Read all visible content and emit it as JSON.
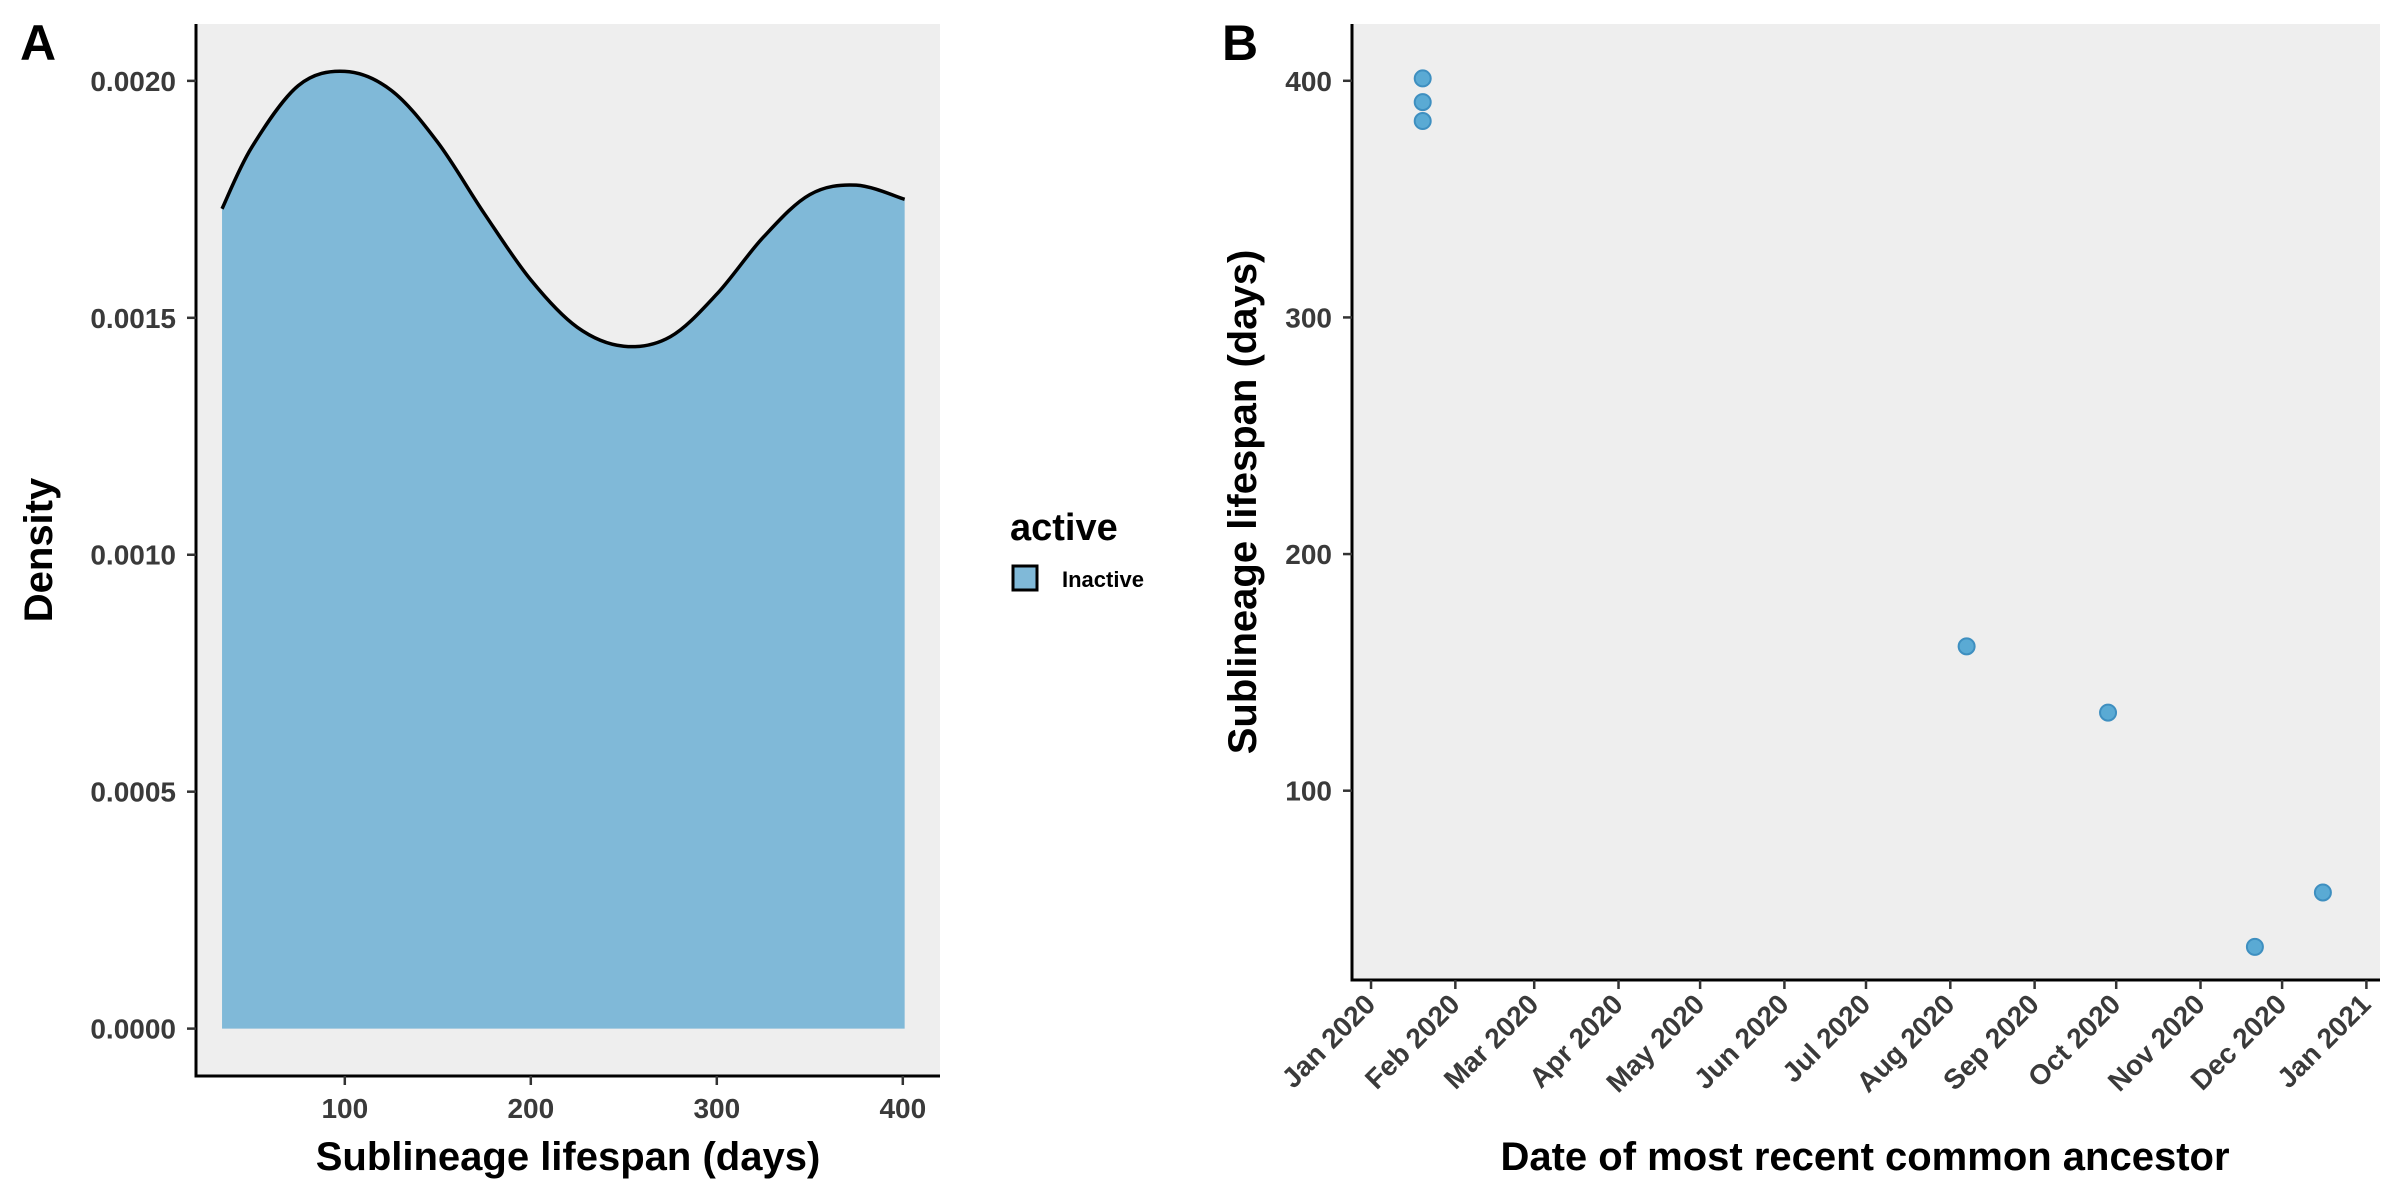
{
  "chart_data": [
    {
      "panel": "A",
      "type": "area",
      "xlabel": "Sublineage lifespan (days)",
      "ylabel": "Density",
      "xlim": [
        20,
        420
      ],
      "ylim": [
        -0.0001,
        0.00212
      ],
      "xticks": [
        100,
        200,
        300,
        400
      ],
      "yticks": [
        "0.0000",
        "0.0005",
        "0.0010",
        "0.0015",
        "0.0020"
      ],
      "series": [
        {
          "name": "Inactive",
          "color": "#80b9d8",
          "x": [
            34,
            50,
            75,
            100,
            125,
            150,
            175,
            200,
            225,
            250,
            275,
            300,
            325,
            350,
            375,
            401
          ],
          "y": [
            0.00173,
            0.00186,
            0.00199,
            0.00202,
            0.00198,
            0.00187,
            0.00172,
            0.00158,
            0.00148,
            0.00144,
            0.00146,
            0.00155,
            0.00167,
            0.00176,
            0.00178,
            0.00175
          ]
        }
      ],
      "grid": false
    },
    {
      "panel": "B",
      "type": "scatter",
      "xlabel": "Date of most recent common ancestor",
      "ylabel": "Sublineage lifespan (days)",
      "xlim": [
        "2019-12-25",
        "2021-01-06"
      ],
      "ylim": [
        20,
        424
      ],
      "xticks": [
        "Jan 2020",
        "Feb 2020",
        "Mar 2020",
        "Apr 2020",
        "May 2020",
        "Jun 2020",
        "Jul 2020",
        "Aug 2020",
        "Sep 2020",
        "Oct 2020",
        "Nov 2020",
        "Dec 2020",
        "Jan 2021"
      ],
      "xtick_dates": [
        "2020-01-01",
        "2020-02-01",
        "2020-03-01",
        "2020-04-01",
        "2020-05-01",
        "2020-06-01",
        "2020-07-01",
        "2020-08-01",
        "2020-09-01",
        "2020-10-01",
        "2020-11-01",
        "2020-12-01",
        "2021-01-01"
      ],
      "yticks": [
        100,
        200,
        300,
        400
      ],
      "points": [
        {
          "x": "2020-01-20",
          "y": 401
        },
        {
          "x": "2020-01-20",
          "y": 391
        },
        {
          "x": "2020-01-20",
          "y": 383
        },
        {
          "x": "2020-08-07",
          "y": 161
        },
        {
          "x": "2020-09-28",
          "y": 133
        },
        {
          "x": "2020-11-21",
          "y": 34
        },
        {
          "x": "2020-12-16",
          "y": 57
        }
      ],
      "point_color": "#5aaad4",
      "grid": false
    }
  ],
  "legend": {
    "title": "active",
    "items": [
      {
        "label": "Inactive",
        "color": "#80b9d8"
      }
    ],
    "position": "between panels, middle"
  },
  "colors": {
    "panel_background": "#eeeeee",
    "axis_line": "#000000",
    "density_fill": "#80b9d8",
    "scatter_point": "#5aaad4"
  }
}
